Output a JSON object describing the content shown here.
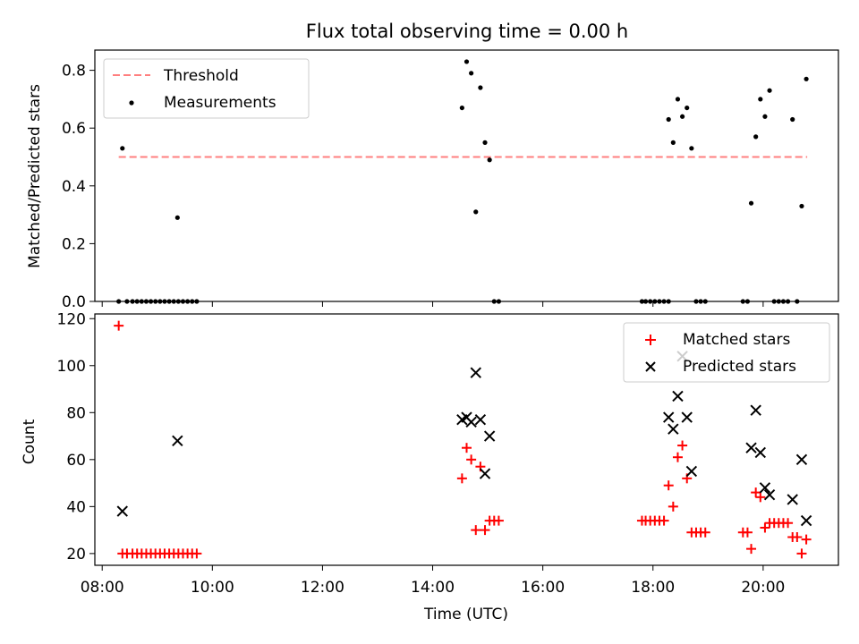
{
  "title": "Flux total observing time = 0.00 h",
  "colors": {
    "threshold": "#ff7f7f",
    "measurements": "#000000",
    "matched": "#ff0000",
    "predicted": "#000000",
    "axes": "#000000"
  },
  "chart_data": [
    {
      "type": "scatter",
      "panel": "top",
      "xlabel": "",
      "ylabel": "Matched/Predicted stars",
      "xlim": [
        "07:52",
        "21:22"
      ],
      "ylim": [
        0,
        0.87
      ],
      "yticks": [
        0.0,
        0.2,
        0.4,
        0.6,
        0.8
      ],
      "ytick_labels": [
        "0.0",
        "0.2",
        "0.4",
        "0.6",
        "0.8"
      ],
      "legend": {
        "placement": "upper-left",
        "entries": [
          {
            "name": "Threshold",
            "style": "dashed-line",
            "color": "#ff7f7f"
          },
          {
            "name": "Measurements",
            "style": "dot",
            "color": "#000000"
          }
        ]
      },
      "threshold": {
        "name": "Threshold",
        "y": 0.5,
        "x_range": [
          "08:18",
          "20:48"
        ]
      },
      "series": [
        {
          "name": "Measurements",
          "marker": "dot",
          "color": "#000000",
          "points": [
            [
              "08:18",
              0.0
            ],
            [
              "08:22",
              0.53
            ],
            [
              "08:27",
              0.0
            ],
            [
              "08:33",
              0.0
            ],
            [
              "08:38",
              0.0
            ],
            [
              "08:43",
              0.0
            ],
            [
              "08:48",
              0.0
            ],
            [
              "08:53",
              0.0
            ],
            [
              "08:58",
              0.0
            ],
            [
              "09:03",
              0.0
            ],
            [
              "09:08",
              0.0
            ],
            [
              "09:13",
              0.0
            ],
            [
              "09:18",
              0.0
            ],
            [
              "09:23",
              0.0
            ],
            [
              "09:28",
              0.0
            ],
            [
              "09:22",
              0.29
            ],
            [
              "09:33",
              0.0
            ],
            [
              "09:38",
              0.0
            ],
            [
              "09:43",
              0.0
            ],
            [
              "14:32",
              0.67
            ],
            [
              "14:37",
              0.83
            ],
            [
              "14:42",
              0.79
            ],
            [
              "14:47",
              0.31
            ],
            [
              "14:52",
              0.74
            ],
            [
              "14:57",
              0.55
            ],
            [
              "15:02",
              0.49
            ],
            [
              "15:07",
              0.0
            ],
            [
              "15:12",
              0.0
            ],
            [
              "17:48",
              0.0
            ],
            [
              "17:52",
              0.0
            ],
            [
              "17:57",
              0.0
            ],
            [
              "18:02",
              0.0
            ],
            [
              "18:07",
              0.0
            ],
            [
              "18:12",
              0.0
            ],
            [
              "18:17",
              0.0
            ],
            [
              "18:17",
              0.63
            ],
            [
              "18:22",
              0.55
            ],
            [
              "18:27",
              0.7
            ],
            [
              "18:32",
              0.64
            ],
            [
              "18:37",
              0.67
            ],
            [
              "18:42",
              0.53
            ],
            [
              "18:47",
              0.0
            ],
            [
              "18:52",
              0.0
            ],
            [
              "18:57",
              0.0
            ],
            [
              "19:38",
              0.0
            ],
            [
              "19:43",
              0.0
            ],
            [
              "19:47",
              0.34
            ],
            [
              "19:52",
              0.57
            ],
            [
              "19:57",
              0.7
            ],
            [
              "20:02",
              0.64
            ],
            [
              "20:07",
              0.73
            ],
            [
              "20:12",
              0.0
            ],
            [
              "20:17",
              0.0
            ],
            [
              "20:22",
              0.0
            ],
            [
              "20:27",
              0.0
            ],
            [
              "20:32",
              0.63
            ],
            [
              "20:37",
              0.0
            ],
            [
              "20:42",
              0.33
            ],
            [
              "20:47",
              0.77
            ]
          ]
        }
      ]
    },
    {
      "type": "scatter",
      "panel": "bottom",
      "xlabel": "Time (UTC)",
      "ylabel": "Count",
      "xlim": [
        "07:52",
        "21:22"
      ],
      "ylim": [
        15,
        122
      ],
      "xticks": [
        "08:00",
        "10:00",
        "12:00",
        "14:00",
        "16:00",
        "18:00",
        "20:00"
      ],
      "yticks": [
        20,
        40,
        60,
        80,
        100,
        120
      ],
      "ytick_labels": [
        "20",
        "40",
        "60",
        "80",
        "100",
        "120"
      ],
      "legend": {
        "placement": "upper-right",
        "entries": [
          {
            "name": "Matched stars",
            "style": "plus",
            "color": "#ff0000"
          },
          {
            "name": "Predicted stars",
            "style": "x",
            "color": "#000000"
          }
        ]
      },
      "series": [
        {
          "name": "Matched stars",
          "marker": "plus",
          "color": "#ff0000",
          "points": [
            [
              "08:18",
              117
            ],
            [
              "08:22",
              20
            ],
            [
              "08:27",
              20
            ],
            [
              "08:33",
              20
            ],
            [
              "08:38",
              20
            ],
            [
              "08:43",
              20
            ],
            [
              "08:48",
              20
            ],
            [
              "08:53",
              20
            ],
            [
              "08:58",
              20
            ],
            [
              "09:03",
              20
            ],
            [
              "09:08",
              20
            ],
            [
              "09:13",
              20
            ],
            [
              "09:18",
              20
            ],
            [
              "09:23",
              20
            ],
            [
              "09:28",
              20
            ],
            [
              "09:33",
              20
            ],
            [
              "09:38",
              20
            ],
            [
              "09:43",
              20
            ],
            [
              "14:32",
              52
            ],
            [
              "14:37",
              65
            ],
            [
              "14:42",
              60
            ],
            [
              "14:47",
              30
            ],
            [
              "14:52",
              57
            ],
            [
              "14:57",
              30
            ],
            [
              "15:02",
              34
            ],
            [
              "15:07",
              34
            ],
            [
              "15:12",
              34
            ],
            [
              "17:48",
              34
            ],
            [
              "17:52",
              34
            ],
            [
              "17:57",
              34
            ],
            [
              "18:02",
              34
            ],
            [
              "18:07",
              34
            ],
            [
              "18:12",
              34
            ],
            [
              "18:17",
              49
            ],
            [
              "18:22",
              40
            ],
            [
              "18:27",
              61
            ],
            [
              "18:32",
              66
            ],
            [
              "18:37",
              52
            ],
            [
              "18:42",
              29
            ],
            [
              "18:47",
              29
            ],
            [
              "18:52",
              29
            ],
            [
              "18:57",
              29
            ],
            [
              "19:38",
              29
            ],
            [
              "19:43",
              29
            ],
            [
              "19:47",
              22
            ],
            [
              "19:52",
              46
            ],
            [
              "19:57",
              44
            ],
            [
              "20:02",
              31
            ],
            [
              "20:07",
              33
            ],
            [
              "20:12",
              33
            ],
            [
              "20:17",
              33
            ],
            [
              "20:22",
              33
            ],
            [
              "20:27",
              33
            ],
            [
              "20:32",
              27
            ],
            [
              "20:37",
              27
            ],
            [
              "20:42",
              20
            ],
            [
              "20:47",
              26
            ]
          ]
        },
        {
          "name": "Predicted stars",
          "marker": "x",
          "color": "#000000",
          "points": [
            [
              "08:22",
              38
            ],
            [
              "09:22",
              68
            ],
            [
              "14:32",
              77
            ],
            [
              "14:37",
              78
            ],
            [
              "14:42",
              76
            ],
            [
              "14:47",
              97
            ],
            [
              "14:52",
              77
            ],
            [
              "14:57",
              54
            ],
            [
              "15:02",
              70
            ],
            [
              "18:17",
              78
            ],
            [
              "18:22",
              73
            ],
            [
              "18:27",
              87
            ],
            [
              "18:32",
              104
            ],
            [
              "18:37",
              78
            ],
            [
              "18:42",
              55
            ],
            [
              "19:47",
              65
            ],
            [
              "19:52",
              81
            ],
            [
              "19:57",
              63
            ],
            [
              "20:02",
              48
            ],
            [
              "20:07",
              45
            ],
            [
              "20:32",
              43
            ],
            [
              "20:42",
              60
            ],
            [
              "20:47",
              34
            ]
          ]
        }
      ]
    }
  ]
}
